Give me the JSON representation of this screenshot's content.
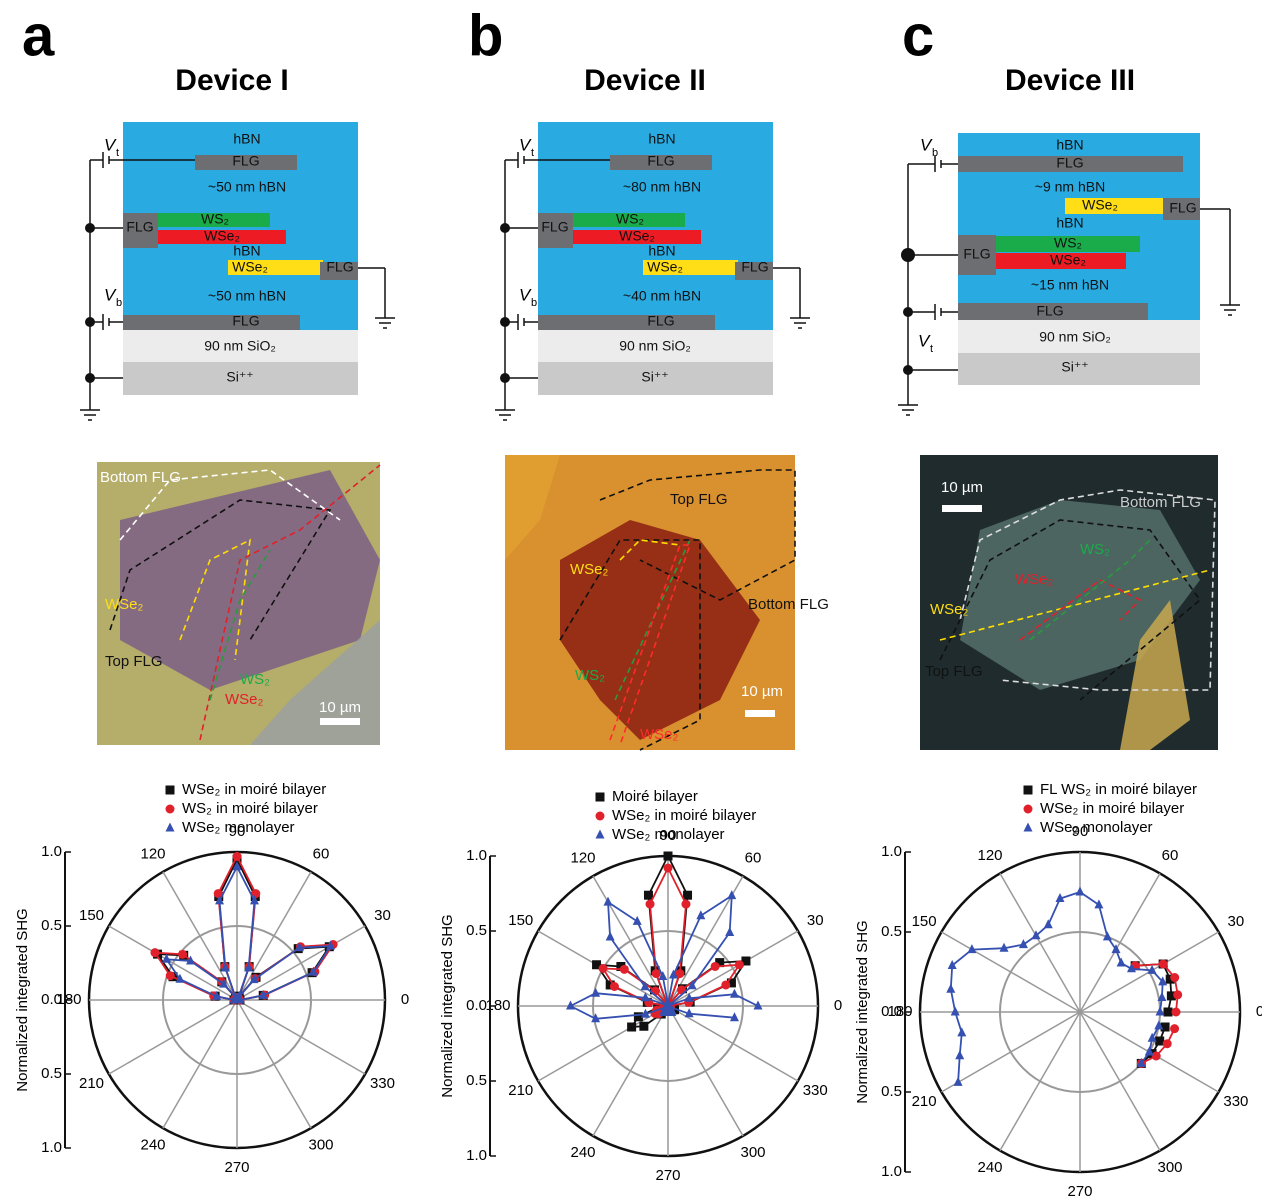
{
  "panels": [
    {
      "label": "a",
      "title": "Device I",
      "stack": [
        "hBN",
        "FLG",
        "~50 nm hBN",
        "FLG",
        "WS₂",
        "WSe₂",
        "hBN",
        "WSe₂",
        "FLG",
        "~50 nm hBN",
        "FLG",
        "90 nm SiO₂",
        "Si⁺⁺"
      ],
      "gates": [
        {
          "symbol": "V",
          "subscript": "t"
        },
        {
          "symbol": "V",
          "subscript": "b"
        }
      ],
      "image_labels": [
        "Bottom FLG",
        "WSe₂",
        "Top FLG",
        "WS₂",
        "WSe₂",
        "10 µm"
      ]
    },
    {
      "label": "b",
      "title": "Device II",
      "stack": [
        "hBN",
        "FLG",
        "~80 nm hBN",
        "FLG",
        "WS₂",
        "WSe₂",
        "hBN",
        "WSe₂",
        "FLG",
        "~40 nm hBN",
        "FLG",
        "90 nm SiO₂",
        "Si⁺⁺"
      ],
      "gates": [
        {
          "symbol": "V",
          "subscript": "t"
        },
        {
          "symbol": "V",
          "subscript": "b"
        }
      ],
      "image_labels": [
        "Top FLG",
        "WSe₂",
        "Bottom FLG",
        "WS₂",
        "WSe₂",
        "10 µm"
      ]
    },
    {
      "label": "c",
      "title": "Device III",
      "stack": [
        "hBN",
        "FLG",
        "~9 nm hBN",
        "WSe₂",
        "FLG",
        "hBN",
        "FLG",
        "WS₂",
        "WSe₂",
        "~15 nm hBN",
        "FLG",
        "90 nm SiO₂",
        "Si⁺⁺"
      ],
      "gates": [
        {
          "symbol": "V",
          "subscript": "b"
        },
        {
          "symbol": "V",
          "subscript": "t"
        }
      ],
      "image_labels": [
        "10 µm",
        "Bottom FLG",
        "WS₂",
        "WSe₂",
        "WSe₂",
        "Top FLG"
      ]
    }
  ],
  "chart_data": [
    {
      "type": "polar",
      "ylabel": "Normalized integrated SHG",
      "rlim": [
        0,
        1
      ],
      "rticks": [
        {
          "value": 0,
          "label": "0.0"
        },
        0.5,
        {
          "value": 1,
          "label": "1.0"
        }
      ],
      "thetaticks": [
        0,
        30,
        60,
        90,
        120,
        150,
        180,
        210,
        240,
        270,
        300,
        330
      ],
      "theta": [
        0,
        10,
        20,
        30,
        40,
        50,
        60,
        70,
        80,
        90,
        100,
        110,
        120,
        130,
        140,
        150,
        160,
        170,
        180
      ],
      "series": [
        {
          "name": "WSe₂ in moiré bilayer",
          "color": "#111111",
          "marker": "square",
          "values": [
            0.02,
            0.18,
            0.54,
            0.72,
            0.54,
            0.2,
            0.03,
            0.24,
            0.71,
            0.95,
            0.71,
            0.24,
            0.02,
            0.16,
            0.47,
            0.62,
            0.46,
            0.15,
            0.02
          ]
        },
        {
          "name": "WS₂ in moiré bilayer",
          "color": "#e0202a",
          "marker": "circle",
          "values": [
            0.02,
            0.19,
            0.56,
            0.75,
            0.56,
            0.19,
            0.02,
            0.24,
            0.73,
            0.97,
            0.73,
            0.24,
            0.02,
            0.16,
            0.48,
            0.64,
            0.48,
            0.16,
            0.02
          ]
        },
        {
          "name": "WSe₂ monolayer",
          "color": "#3550b0",
          "marker": "triangle",
          "values": [
            0.02,
            0.18,
            0.55,
            0.73,
            0.55,
            0.18,
            0.02,
            0.23,
            0.68,
            0.9,
            0.68,
            0.23,
            0.02,
            0.14,
            0.41,
            0.55,
            0.41,
            0.14,
            0.02
          ]
        }
      ]
    },
    {
      "type": "polar",
      "ylabel": "Normalized integrated SHG",
      "rlim": [
        0,
        1
      ],
      "rticks": [
        {
          "value": 0,
          "label": "0.0"
        },
        0.5,
        {
          "value": 1,
          "label": "1.0"
        }
      ],
      "thetaticks": [
        0,
        30,
        60,
        90,
        120,
        150,
        180,
        210,
        240,
        270,
        300,
        330
      ],
      "theta": [
        0,
        10,
        20,
        30,
        40,
        50,
        60,
        70,
        80,
        90,
        100,
        110,
        120,
        130,
        140,
        150,
        160,
        170,
        180,
        190,
        200,
        210,
        220,
        230,
        240,
        250,
        260,
        270,
        280,
        290,
        300,
        310,
        320,
        330,
        340,
        350
      ],
      "series": [
        {
          "name": "Moiré bilayer",
          "color": "#111111",
          "marker": "square",
          "values": [
            0.01,
            0.15,
            0.45,
            0.6,
            0.45,
            0.15,
            0.01,
            0.25,
            0.75,
            1.0,
            0.75,
            0.25,
            0.01,
            0.14,
            0.41,
            0.55,
            0.41,
            0.14,
            0.01,
            0.07,
            0.21,
            0.28,
            0.21,
            0.07,
            0.01,
            0.01,
            0.02,
            0.02,
            0.02,
            0.01,
            0.01,
            0.01,
            0.04,
            0.05,
            0.04,
            0.01
          ]
        },
        {
          "name": "WSe₂ in moiré bilayer",
          "color": "#e0202a",
          "marker": "circle",
          "values": [
            0.01,
            0.14,
            0.41,
            0.55,
            0.41,
            0.14,
            0.01,
            0.23,
            0.69,
            0.92,
            0.69,
            0.23,
            0.01,
            0.13,
            0.38,
            0.5,
            0.38,
            0.13,
            0.01,
            0.03,
            0.08,
            0.1,
            0.08,
            0.03,
            0.01,
            0.01,
            0.01,
            0.02,
            0.01,
            0.01,
            0.01,
            0.01,
            0.01,
            0.02,
            0.01,
            0.01
          ]
        },
        {
          "name": "WSe₂ monolayer",
          "color": "#3550b0",
          "marker": "triangle",
          "values": [
            0.6,
            0.45,
            0.15,
            0.01,
            0.21,
            0.64,
            0.85,
            0.64,
            0.21,
            0.01,
            0.2,
            0.6,
            0.8,
            0.6,
            0.2,
            0.01,
            0.16,
            0.49,
            0.65,
            0.49,
            0.16,
            0.01,
            0.01,
            0.04,
            0.05,
            0.04,
            0.01,
            0.01,
            0.01,
            0.04,
            0.05,
            0.04,
            0.01,
            0.01,
            0.15,
            0.45
          ]
        }
      ]
    },
    {
      "type": "polar",
      "ylabel": "Normalized integrated SHG",
      "rlim": [
        0,
        1
      ],
      "rticks": [
        {
          "value": 0,
          "label": "0.0"
        },
        0.5,
        {
          "value": 1,
          "label": "1.0"
        }
      ],
      "thetaticks": [
        0,
        30,
        60,
        90,
        120,
        150,
        180,
        210,
        240,
        270,
        300,
        330
      ],
      "theta": [
        0,
        10,
        20,
        30,
        40,
        50,
        60,
        70,
        80,
        90,
        100,
        110,
        120,
        130,
        140,
        150,
        160,
        170,
        180,
        190,
        200,
        210,
        220,
        230,
        240,
        250,
        260,
        270,
        280,
        290,
        300,
        310,
        320,
        330,
        340,
        350
      ],
      "series": [
        {
          "name": "FL WS₂ in moiré bilayer",
          "color": "#111111",
          "marker": "square",
          "values": [
            0.55,
            0.58,
            0.6,
            0.6,
            0.45,
            null,
            null,
            null,
            null,
            null,
            null,
            null,
            null,
            null,
            null,
            null,
            null,
            null,
            null,
            null,
            null,
            null,
            null,
            null,
            null,
            null,
            null,
            null,
            null,
            null,
            null,
            null,
            0.5,
            0.52,
            0.53,
            0.54
          ]
        },
        {
          "name": "WSe₂ in moiré bilayer",
          "color": "#e0202a",
          "marker": "circle",
          "values": [
            0.6,
            0.62,
            0.63,
            0.6,
            0.45,
            null,
            null,
            null,
            null,
            null,
            null,
            null,
            null,
            null,
            null,
            null,
            null,
            null,
            null,
            null,
            null,
            null,
            null,
            null,
            null,
            null,
            null,
            null,
            null,
            null,
            null,
            null,
            0.5,
            0.55,
            0.58,
            0.6
          ]
        },
        {
          "name": "WSe₂ monolayer",
          "color": "#3550b0",
          "marker": "triangle",
          "values": [
            0.5,
            0.52,
            0.55,
            0.52,
            0.42,
            0.4,
            0.45,
            0.5,
            0.68,
            0.75,
            0.72,
            0.58,
            0.55,
            0.55,
            0.62,
            0.78,
            0.85,
            0.82,
            0.78,
            0.75,
            0.8,
            0.88,
            null,
            null,
            null,
            null,
            null,
            null,
            null,
            null,
            null,
            null,
            0.5,
            0.5,
            0.48,
            0.5
          ]
        }
      ]
    }
  ]
}
